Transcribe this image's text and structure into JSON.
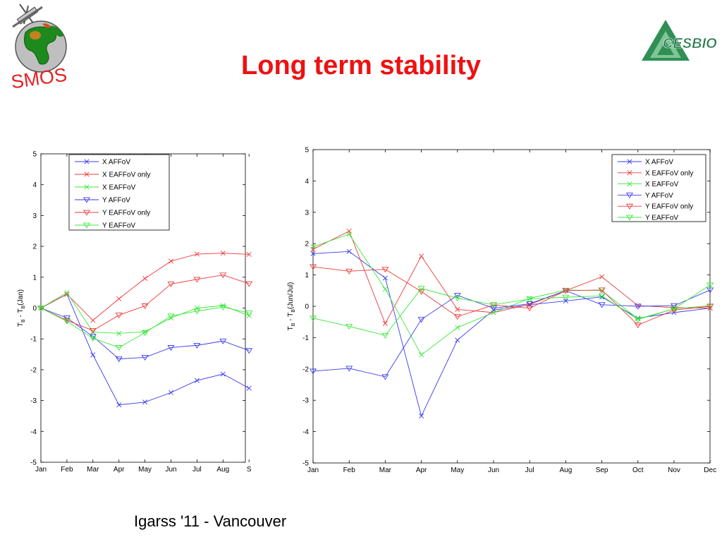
{
  "slide": {
    "title": "Long term stability",
    "footer": "Igarss '11 - Vancouver",
    "title_color": "#ee1111"
  },
  "logos": {
    "left_text": "SMOS",
    "right_text": "CESBIO",
    "left_icon": "globe-satellite-icon",
    "right_icon": "cesbio-triangle-icon"
  },
  "colors": {
    "blue": "#3a3af2",
    "red": "#ee3a3a",
    "green": "#3ae83a"
  },
  "chart_data": [
    {
      "type": "line",
      "title": "",
      "xlabel": "",
      "ylabel_main": "T",
      "ylabel_sub1": "B",
      "ylabel_mid": " - T",
      "ylabel_sub2": "B",
      "ylabel_tail": "(Jan)",
      "categories": [
        "Jan",
        "Feb",
        "Mar",
        "Apr",
        "May",
        "Jun",
        "Jul",
        "Aug",
        "S"
      ],
      "ylim": [
        -5,
        5
      ],
      "yticks": [
        5,
        4,
        3,
        2,
        1,
        0,
        -1,
        -2,
        -3,
        -4,
        -5
      ],
      "legend_position": "top-left",
      "series": [
        {
          "name": "X AFFoV",
          "color": "blue",
          "marker": "x",
          "values": [
            0,
            0.45,
            -1.52,
            -3.14,
            -3.05,
            -2.74,
            -2.35,
            -2.14,
            -2.6
          ]
        },
        {
          "name": "X EAFFoV only",
          "color": "red",
          "marker": "x",
          "values": [
            0,
            0.45,
            -0.4,
            0.3,
            0.96,
            1.52,
            1.75,
            1.78,
            1.74
          ]
        },
        {
          "name": "X EAFFoV",
          "color": "green",
          "marker": "x",
          "values": [
            0,
            0.5,
            -0.78,
            -0.82,
            -0.77,
            -0.32,
            0.0,
            0.08,
            -0.25
          ]
        },
        {
          "name": "Y AFFoV",
          "color": "blue",
          "marker": "v",
          "values": [
            0,
            -0.32,
            -0.92,
            -1.65,
            -1.6,
            -1.28,
            -1.21,
            -1.07,
            -1.38
          ]
        },
        {
          "name": "Y EAFFoV only",
          "color": "red",
          "marker": "v",
          "values": [
            0,
            -0.4,
            -0.73,
            -0.23,
            0.07,
            0.78,
            0.93,
            1.07,
            0.79
          ]
        },
        {
          "name": "Y EAFFoV",
          "color": "green",
          "marker": "v",
          "values": [
            0,
            -0.43,
            -0.98,
            -1.28,
            -0.8,
            -0.26,
            -0.1,
            0.03,
            -0.16
          ]
        }
      ]
    },
    {
      "type": "line",
      "title": "",
      "xlabel": "",
      "ylabel_main": "T",
      "ylabel_sub1": "B",
      "ylabel_mid": " - T",
      "ylabel_sub2": "B",
      "ylabel_tail": "(Jun/Jul)",
      "categories": [
        "Jan",
        "Feb",
        "Mar",
        "Apr",
        "May",
        "Jun",
        "Jul",
        "Aug",
        "Sep",
        "Oct",
        "Nov",
        "Dec"
      ],
      "ylim": [
        -5,
        5
      ],
      "yticks": [
        5,
        4,
        3,
        2,
        1,
        0,
        -1,
        -2,
        -3,
        -4,
        -5
      ],
      "legend_position": "top-right",
      "series": [
        {
          "name": "X AFFoV",
          "color": "blue",
          "marker": "x",
          "values": [
            1.68,
            1.75,
            0.9,
            -3.5,
            -1.08,
            -0.12,
            0.05,
            0.17,
            0.3,
            -0.38,
            -0.2,
            -0.06
          ]
        },
        {
          "name": "X EAFFoV only",
          "color": "red",
          "marker": "x",
          "values": [
            1.82,
            2.4,
            -0.55,
            1.6,
            -0.1,
            -0.2,
            0.06,
            0.5,
            0.94,
            0.02,
            -0.04,
            -0.06
          ]
        },
        {
          "name": "X EAFFoV",
          "color": "green",
          "marker": "x",
          "values": [
            1.9,
            2.3,
            0.55,
            -1.55,
            -0.68,
            -0.2,
            0.25,
            0.52,
            0.5,
            -0.4,
            -0.08,
            0.02
          ]
        },
        {
          "name": "Y AFFoV",
          "color": "blue",
          "marker": "v",
          "values": [
            -2.07,
            -1.98,
            -2.25,
            -0.42,
            0.35,
            -0.06,
            0.08,
            0.5,
            0.05,
            0.0,
            0.02,
            0.52
          ]
        },
        {
          "name": "Y EAFFoV only",
          "color": "red",
          "marker": "v",
          "values": [
            1.26,
            1.12,
            1.18,
            0.47,
            -0.33,
            0.04,
            -0.06,
            0.5,
            0.52,
            -0.6,
            -0.12,
            0.0
          ]
        },
        {
          "name": "Y EAFFoV",
          "color": "green",
          "marker": "v",
          "values": [
            -0.38,
            -0.64,
            -0.93,
            0.57,
            0.26,
            0.05,
            0.23,
            0.29,
            0.33,
            -0.42,
            -0.08,
            0.68
          ]
        }
      ]
    }
  ]
}
